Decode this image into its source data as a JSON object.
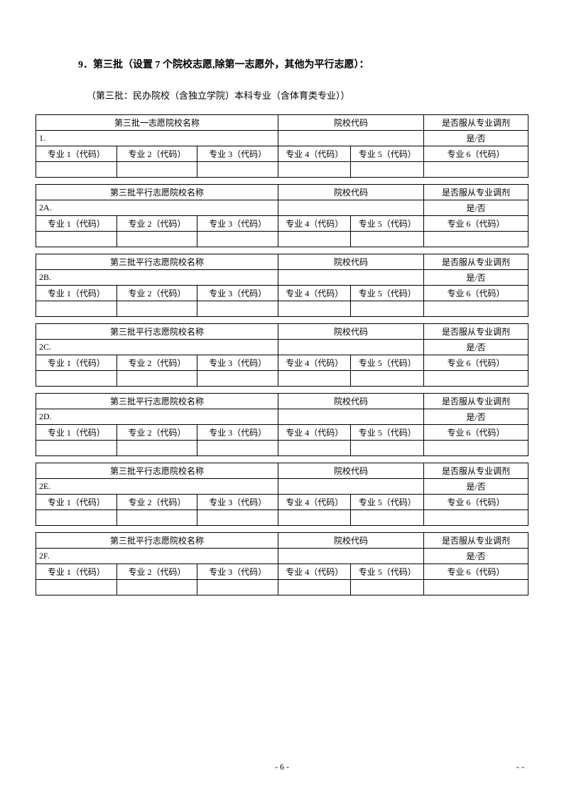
{
  "title": "9．第三批（设置 7 个院校志愿,除第一志愿外，其他为平行志愿）：",
  "subtitle": "（第三批：民办院校（含独立学院）本科专业（含体育类专业））",
  "header_school_first": "第三批一志愿院校名称",
  "header_school_parallel": "第三批平行志愿院校名称",
  "header_code": "院校代码",
  "header_adjust": "是否服从专业调剂",
  "yes_no": "是/否",
  "major1": "专业 1（代码）",
  "major2": "专业 2（代码）",
  "major3": "专业 3（代码）",
  "major4": "专业 4（代码）",
  "major5": "专业 5（代码）",
  "major6": "专业 6（代码）",
  "rows": [
    "1.",
    "2A.",
    "2B.",
    "2C.",
    "2D.",
    "2E.",
    "2F."
  ],
  "page_num": "- 6 -",
  "corner": "-  -"
}
